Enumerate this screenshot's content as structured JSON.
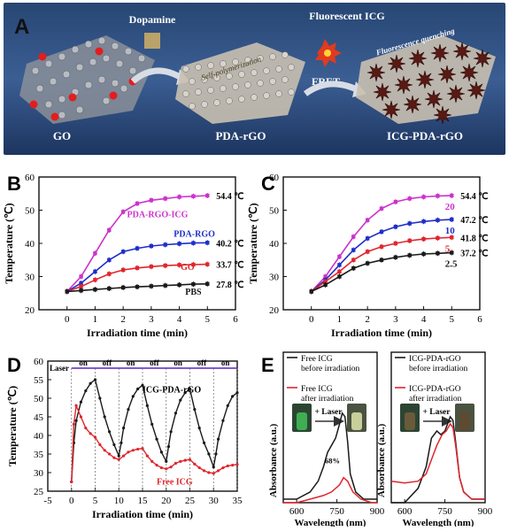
{
  "colors": {
    "pink": "#cc33cc",
    "blue": "#1f2ec9",
    "red": "#e0262b",
    "black": "#1a1a1a",
    "panel_a_bg": "#2f4f80"
  },
  "panel_a": {
    "letter": "A",
    "go_label": "GO",
    "pdargo_label": "PDA-rGO",
    "icg_label": "ICG-PDA-rGO",
    "dopamine": "Dopamine",
    "fluorescent_icg": "Fluorescent ICG",
    "self_polymerization": "Self-polymerization",
    "fret": "FRET",
    "quenching": "Fluorescence quenching"
  },
  "chart_data": [
    {
      "panel": "B",
      "type": "line",
      "xlabel": "Irradiation time (min)",
      "ylabel": "Temperature (℃)",
      "xlim": [
        -1,
        6
      ],
      "ylim": [
        20,
        60
      ],
      "xticks": [
        "0",
        "1",
        "2",
        "3",
        "4",
        "5",
        "6"
      ],
      "yticks": [
        "20",
        "30",
        "40",
        "50",
        "60"
      ],
      "x": [
        0,
        0.5,
        1,
        1.5,
        2,
        2.5,
        3,
        3.5,
        4,
        4.5,
        5
      ],
      "series": [
        {
          "name": "PDA-RGO-ICG",
          "color": "#cc33cc",
          "end_label": "54.4 ℃",
          "values": [
            25.5,
            30,
            37,
            44,
            49.5,
            52,
            53,
            53.5,
            54,
            54.2,
            54.4
          ]
        },
        {
          "name": "PDA-RGO",
          "color": "#1f2ec9",
          "end_label": "40.2 ℃",
          "values": [
            25.5,
            28,
            31.5,
            35,
            37.5,
            38.5,
            39.2,
            39.6,
            39.9,
            40.1,
            40.2
          ]
        },
        {
          "name": "GO",
          "color": "#e0262b",
          "end_label": "33.7 ℃",
          "values": [
            25.5,
            27,
            29,
            30.8,
            32,
            32.6,
            33,
            33.3,
            33.5,
            33.6,
            33.7
          ]
        },
        {
          "name": "PBS",
          "color": "#1a1a1a",
          "end_label": "27.8 ℃",
          "values": [
            25.5,
            25.8,
            26.1,
            26.4,
            26.7,
            26.9,
            27.1,
            27.3,
            27.5,
            27.7,
            27.8
          ]
        }
      ]
    },
    {
      "panel": "C",
      "type": "line",
      "xlabel": "Irradiation time (min)",
      "ylabel": "Temperature (℃)",
      "xlim": [
        -1,
        6
      ],
      "ylim": [
        20,
        60
      ],
      "xticks": [
        "0",
        "1",
        "2",
        "3",
        "4",
        "5",
        "6"
      ],
      "yticks": [
        "20",
        "30",
        "40",
        "50",
        "60"
      ],
      "x": [
        0,
        0.5,
        1,
        1.5,
        2,
        2.5,
        3,
        3.5,
        4,
        4.5,
        5
      ],
      "series": [
        {
          "name": "20",
          "color": "#cc33cc",
          "end_label": "54.4 ℃",
          "values": [
            25.5,
            30,
            36,
            42,
            47,
            50.5,
            52.5,
            53.5,
            54,
            54.3,
            54.4
          ]
        },
        {
          "name": "10",
          "color": "#1f2ec9",
          "end_label": "47.2 ℃",
          "values": [
            25.5,
            29,
            33.5,
            38,
            41.5,
            43.5,
            45,
            46,
            46.6,
            47,
            47.2
          ]
        },
        {
          "name": "5",
          "color": "#e0262b",
          "end_label": "41.8 ℃",
          "values": [
            25.5,
            28.5,
            31.5,
            35,
            37.5,
            39,
            40,
            40.8,
            41.3,
            41.6,
            41.8
          ]
        },
        {
          "name": "2.5",
          "color": "#1a1a1a",
          "end_label": "37.2 ℃",
          "values": [
            25.5,
            27.5,
            30,
            32.5,
            34,
            35,
            35.8,
            36.4,
            36.8,
            37,
            37.2
          ]
        }
      ]
    },
    {
      "panel": "D",
      "type": "line",
      "xlabel": "Irradiation time (min)",
      "ylabel": "Temperature (℃)",
      "xlim": [
        -5,
        35
      ],
      "ylim": [
        25,
        60
      ],
      "xticks": [
        "-5",
        "0",
        "5",
        "10",
        "15",
        "20",
        "25",
        "30",
        "35"
      ],
      "yticks": [
        "25",
        "30",
        "35",
        "40",
        "45",
        "50",
        "55",
        "60"
      ],
      "laser_label": "Laser",
      "laser_states": [
        "on",
        "off",
        "on",
        "off",
        "on",
        "off",
        "on"
      ],
      "series": [
        {
          "name": "ICG-PDA-rGO",
          "color": "#1a1a1a",
          "x": [
            0,
            0.5,
            1,
            2,
            3,
            4,
            5,
            6,
            7,
            8,
            9,
            10,
            10.5,
            11,
            12,
            13,
            14,
            15,
            16,
            17,
            18,
            19,
            20,
            20.5,
            21,
            22,
            23,
            24,
            25,
            26,
            27,
            28,
            29,
            30,
            30.5,
            31,
            32,
            33,
            34,
            35
          ],
          "values": [
            27.5,
            38,
            44,
            49,
            52,
            54,
            55,
            50,
            45,
            41,
            37.5,
            34.5,
            38,
            42,
            47,
            50.5,
            52.5,
            53.5,
            48,
            43,
            39,
            35.5,
            33,
            37,
            41,
            46,
            49.5,
            51.5,
            52.5,
            47,
            42,
            38,
            35,
            31.5,
            35,
            39,
            44,
            48,
            50.5,
            51.5
          ]
        },
        {
          "name": "Free ICG",
          "color": "#e0262b",
          "x": [
            0,
            0.5,
            1,
            2,
            3,
            4,
            5,
            6,
            7,
            8,
            9,
            10,
            11,
            12,
            13,
            14,
            15,
            16,
            17,
            18,
            19,
            20,
            21,
            22,
            23,
            24,
            25,
            26,
            27,
            28,
            29,
            30,
            31,
            32,
            33,
            34,
            35
          ],
          "values": [
            27.5,
            43,
            48,
            45,
            42,
            40.5,
            39.5,
            37.5,
            36,
            35,
            34,
            33.5,
            34.5,
            35.5,
            36,
            36.3,
            36.5,
            34.5,
            33,
            32,
            31.3,
            31,
            31.5,
            32.5,
            33,
            33.3,
            33.5,
            32.3,
            31.3,
            30.5,
            30,
            29.8,
            30.5,
            31.3,
            31.8,
            32,
            32.2
          ]
        }
      ]
    },
    {
      "panel": "E-left",
      "type": "line",
      "xlabel": "Wavelength (nm)",
      "ylabel": "Absorbance (a.u.)",
      "xlim": [
        550,
        900
      ],
      "xticks": [
        "600",
        "750",
        "900"
      ],
      "annotation": "68%",
      "photo_arrow": "+ Laser",
      "series": [
        {
          "name": "Free ICG before irradiation",
          "color": "#1a1a1a",
          "x": [
            550,
            600,
            650,
            680,
            700,
            715,
            730,
            745,
            760,
            770,
            780,
            790,
            800,
            820,
            850,
            900
          ],
          "values": [
            0.01,
            0.01,
            0.03,
            0.06,
            0.1,
            0.14,
            0.16,
            0.18,
            0.22,
            0.25,
            0.24,
            0.17,
            0.08,
            0.03,
            0.01,
            0.01
          ]
        },
        {
          "name": "Free ICG after irradiation",
          "color": "#e0262b",
          "x": [
            550,
            600,
            650,
            700,
            730,
            760,
            775,
            790,
            810,
            840,
            880,
            900
          ],
          "values": [
            0.0,
            0.0,
            0.01,
            0.02,
            0.03,
            0.05,
            0.07,
            0.06,
            0.03,
            0.01,
            0.0,
            0.0
          ]
        }
      ]
    },
    {
      "panel": "E-right",
      "type": "line",
      "xlabel": "Wavelength (nm)",
      "ylabel": "Absorbance (a.u.)",
      "xlim": [
        550,
        900
      ],
      "xticks": [
        "600",
        "750",
        "900"
      ],
      "photo_arrow": "+ Laser",
      "series": [
        {
          "name": "ICG-PDA-rGO before irradiation",
          "color": "#1a1a1a",
          "x": [
            550,
            600,
            650,
            680,
            700,
            720,
            735,
            750,
            760,
            770,
            780,
            790,
            805,
            820,
            850,
            900
          ],
          "values": [
            0.0,
            0.0,
            0.04,
            0.1,
            0.18,
            0.2,
            0.19,
            0.2,
            0.22,
            0.24,
            0.23,
            0.17,
            0.07,
            0.03,
            0.01,
            0.01
          ]
        },
        {
          "name": "ICG-PDA-rGO after irradiation",
          "color": "#e0262b",
          "x": [
            550,
            600,
            650,
            680,
            700,
            720,
            740,
            755,
            770,
            780,
            790,
            805,
            820,
            850,
            900
          ],
          "values": [
            0.06,
            0.055,
            0.06,
            0.08,
            0.12,
            0.16,
            0.19,
            0.2,
            0.22,
            0.21,
            0.16,
            0.07,
            0.03,
            0.01,
            0.01
          ]
        }
      ]
    }
  ],
  "panel_letters": {
    "b": "B",
    "c": "C",
    "d": "D",
    "e": "E"
  }
}
